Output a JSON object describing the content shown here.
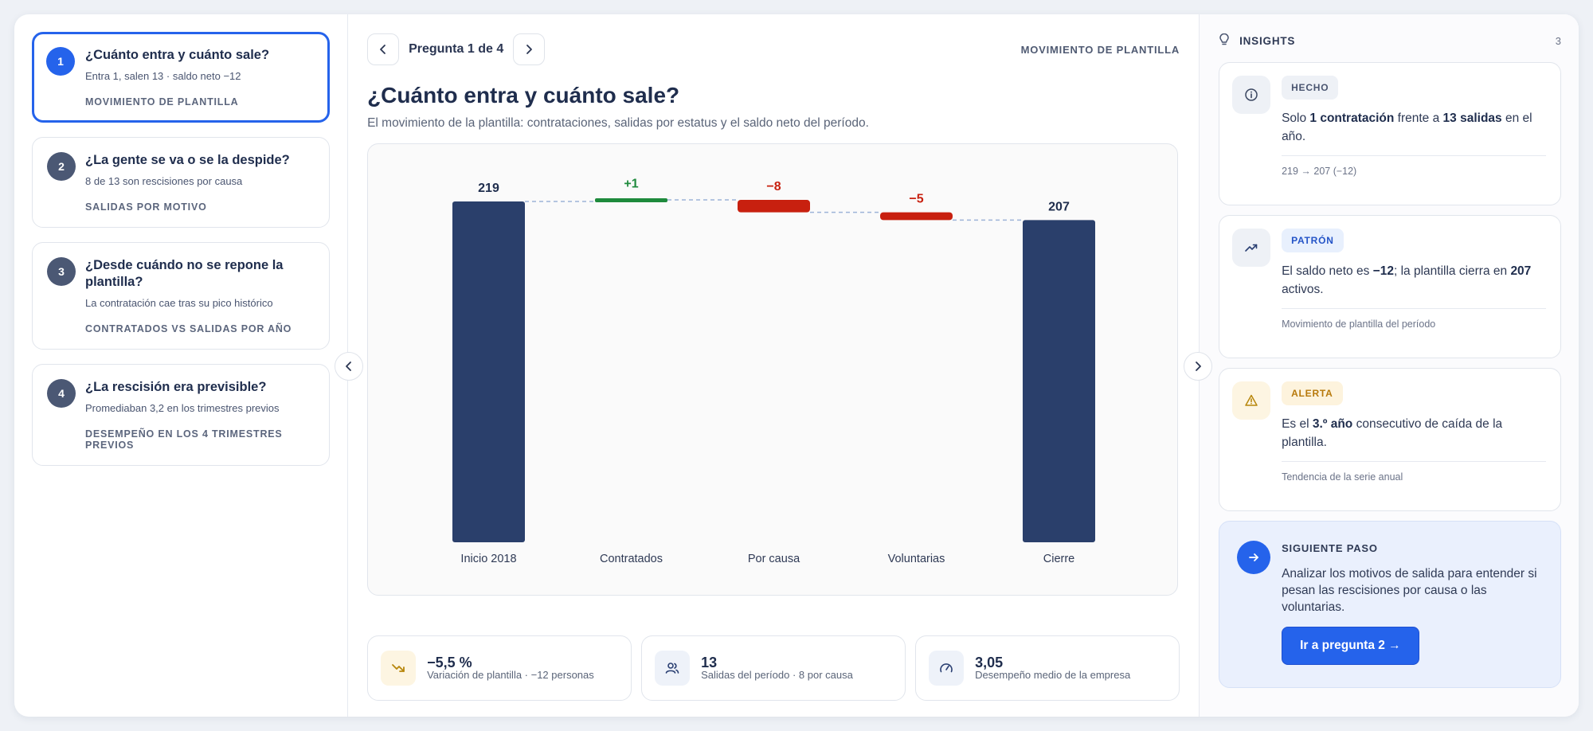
{
  "sidebar": {
    "questions": [
      {
        "num": "1",
        "title": "¿Cuánto entra y cuánto sale?",
        "sub": "Entra 1, salen 13 · saldo neto −12",
        "tag": "MOVIMIENTO DE PLANTILLA"
      },
      {
        "num": "2",
        "title": "¿La gente se va o se la despide?",
        "sub": "8 de 13 son rescisiones por causa",
        "tag": "SALIDAS POR MOTIVO"
      },
      {
        "num": "3",
        "title": "¿Desde cuándo no se repone la plantilla?",
        "sub": "La contratación cae tras su pico histórico",
        "tag": "CONTRATADOS VS SALIDAS POR AÑO"
      },
      {
        "num": "4",
        "title": "¿La rescisión era previsible?",
        "sub": "Promediaban 3,2 en los trimestres previos",
        "tag": "DESEMPEÑO EN LOS 4 TRIMESTRES PREVIOS"
      }
    ]
  },
  "header": {
    "step_label": "Pregunta 1 de 4",
    "crumb": "MOVIMIENTO DE PLANTILLA",
    "title": "¿Cuánto entra y cuánto sale?",
    "subtitle": "El movimiento de la plantilla: contrataciones, salidas por estatus y el saldo neto del período."
  },
  "chart_data": {
    "type": "bar",
    "subtype": "waterfall",
    "categories": [
      "Inicio 2018",
      "Contratados",
      "Por causa",
      "Voluntarias",
      "Cierre"
    ],
    "values": [
      219,
      1,
      -8,
      -5,
      207
    ],
    "labels": [
      "219",
      "+1",
      "−8",
      "−5",
      "207"
    ],
    "kinds": [
      "total",
      "increase",
      "decrease",
      "decrease",
      "total"
    ],
    "colors": {
      "total": "#2a3f6b",
      "increase": "#1e8a3c",
      "decrease": "#c8200f",
      "connector": "#9db3d8"
    },
    "ylim": [
      0,
      220
    ],
    "grid": false,
    "legend": "none"
  },
  "kpis": [
    {
      "value": "−5,5 %",
      "label": "Variación de plantilla · −12 personas",
      "icon": "trend-down-icon"
    },
    {
      "value": "13",
      "label": "Salidas del período · 8 por causa",
      "icon": "users-icon"
    },
    {
      "value": "3,05",
      "label": "Desempeño medio de la empresa",
      "icon": "gauge-icon"
    }
  ],
  "insights": {
    "title": "INSIGHTS",
    "count": "3",
    "cards": [
      {
        "badge": "HECHO",
        "t1": "Solo ",
        "b1": "1 contratación",
        "t2": " frente a ",
        "b2": "13 salidas",
        "t3": " en el año.",
        "foot": "219 → 207 (−12)",
        "icon": "info-icon"
      },
      {
        "badge": "PATRÓN",
        "t1": "El saldo neto es ",
        "b1": "−12",
        "t2": "; la plantilla cierra en ",
        "b2": "207",
        "t3": " activos.",
        "foot": "Movimiento de plantilla del período",
        "icon": "trend-up-icon"
      },
      {
        "badge": "ALERTA",
        "t1": "Es el ",
        "b1": "3.º año",
        "t2": " consecutivo de caída de la plantilla.",
        "b2": "",
        "t3": "",
        "foot": "Tendencia de la serie anual",
        "icon": "warning-icon"
      }
    ],
    "next": {
      "label": "SIGUIENTE PASO",
      "text": "Analizar los motivos de salida para entender si pesan las rescisiones por causa o las voluntarias.",
      "button": "Ir a pregunta 2 →"
    }
  }
}
